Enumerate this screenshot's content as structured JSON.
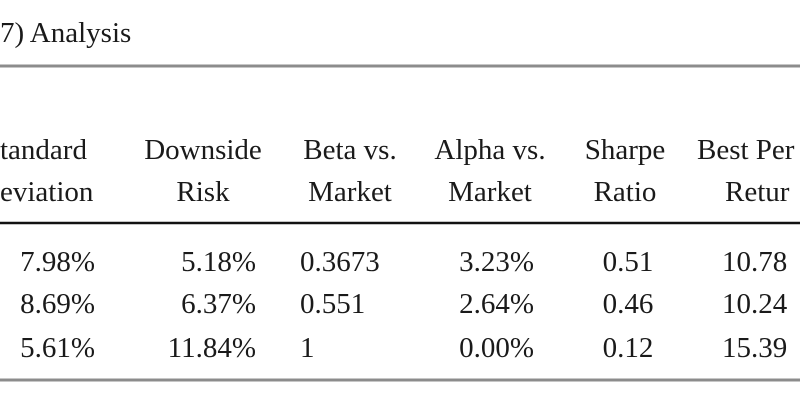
{
  "header": {
    "title": "7) Analysis"
  },
  "table": {
    "columns": [
      [
        "tandard",
        "eviation"
      ],
      [
        "Downside",
        "Risk"
      ],
      [
        "Beta vs.",
        "Market"
      ],
      [
        "Alpha vs.",
        "Market"
      ],
      [
        "Sharpe",
        "Ratio"
      ],
      [
        "Best Per",
        "Retur"
      ]
    ],
    "rows": [
      [
        "7.98%",
        "5.18%",
        "0.3673",
        "3.23%",
        "0.51",
        "10.78"
      ],
      [
        "8.69%",
        "6.37%",
        "0.551",
        "2.64%",
        "0.46",
        "10.24"
      ],
      [
        "5.61%",
        "11.84%",
        "1",
        "0.00%",
        "0.12",
        "15.39"
      ]
    ]
  }
}
